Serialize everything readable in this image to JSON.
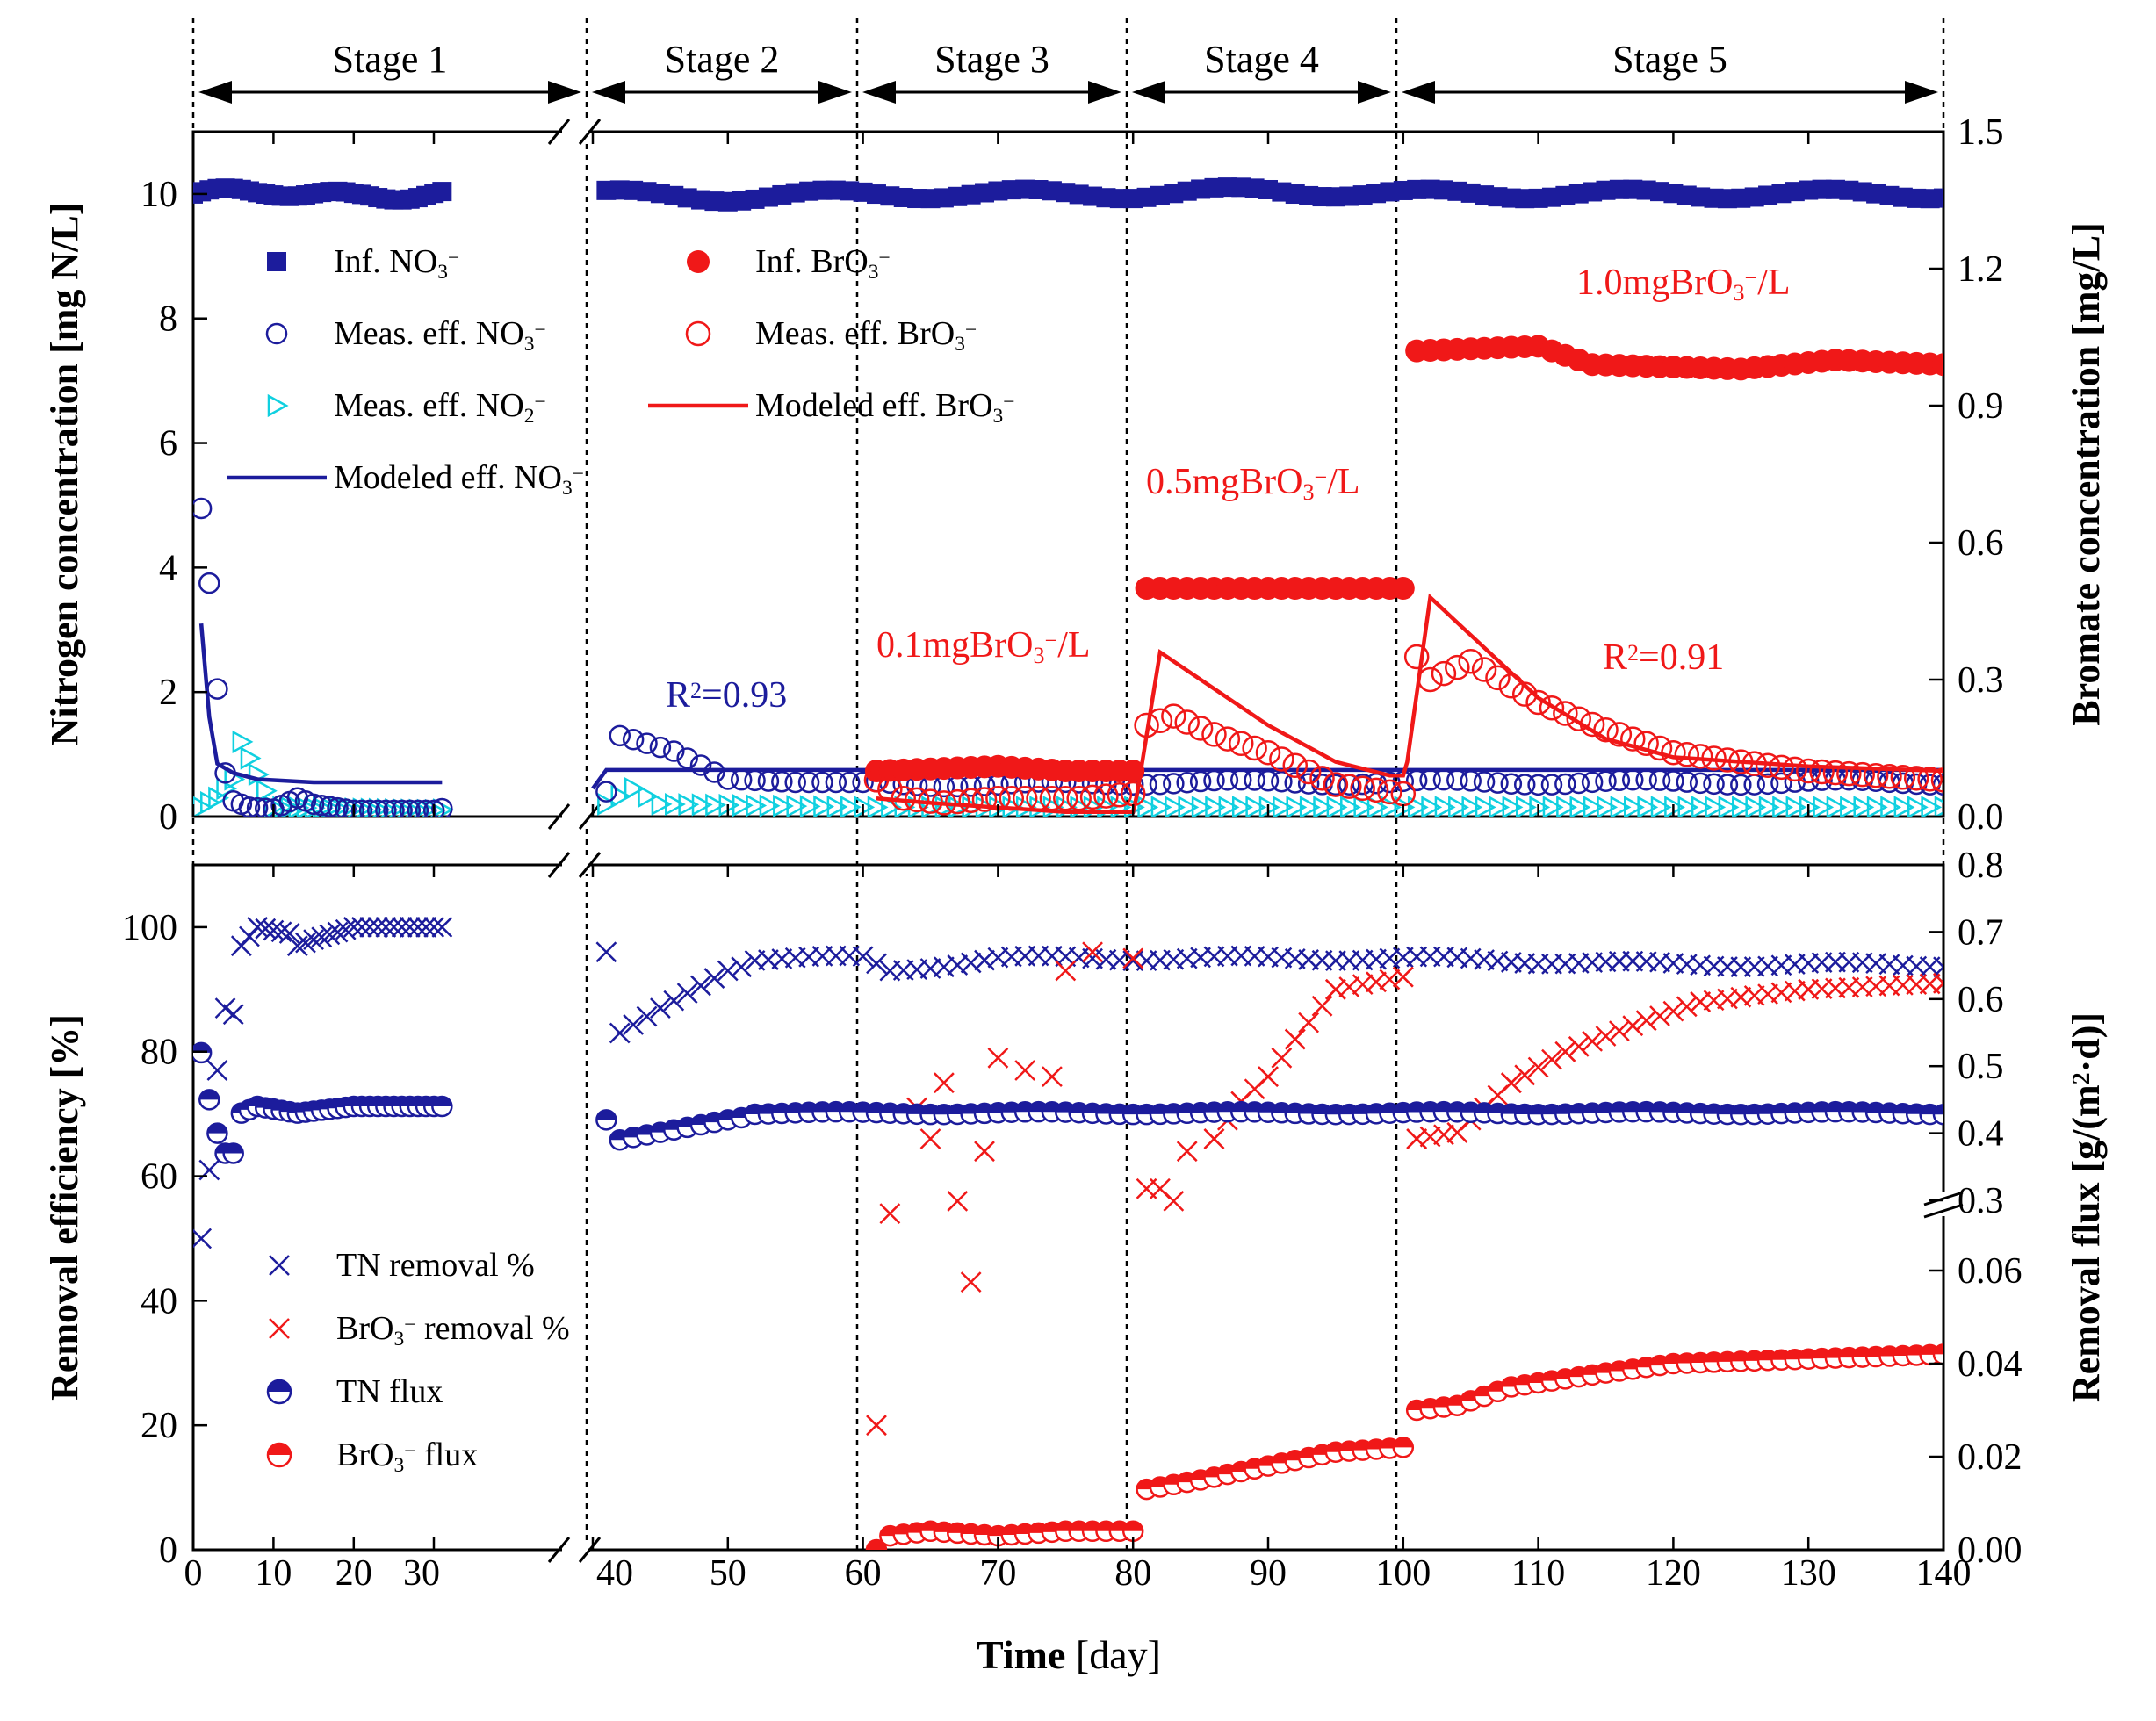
{
  "chart_data": {
    "type": "scatter",
    "x_axis": {
      "title": "Time",
      "unit": "[day]",
      "tick_labels": [
        "0",
        "10",
        "20",
        "30",
        "40",
        "50",
        "60",
        "70",
        "80",
        "90",
        "100",
        "110",
        "120",
        "130",
        "140"
      ],
      "axis_break": "between day 30 and day 40"
    },
    "stages": [
      {
        "label": "Stage 1",
        "start": 0,
        "end": 31
      },
      {
        "label": "Stage 2",
        "start": 39,
        "end": 60
      },
      {
        "label": "Stage 3",
        "start": 60,
        "end": 80
      },
      {
        "label": "Stage 4",
        "start": 80,
        "end": 100
      },
      {
        "label": "Stage 5",
        "start": 100,
        "end": 140
      }
    ],
    "top_panel": {
      "y_left": {
        "title": "Nitrogen concentration [mg N/L]",
        "ylim": [
          0,
          11
        ],
        "ticks": [
          "0",
          "2",
          "4",
          "6",
          "8",
          "10"
        ]
      },
      "y_right": {
        "title": "Bromate concentration [mg/L]",
        "ylim": [
          0,
          1.5
        ],
        "ticks": [
          "0.0",
          "0.3",
          "0.6",
          "0.9",
          "1.2",
          "1.5"
        ]
      },
      "legend_left": [
        "Inf. NO3⁻",
        "Meas. eff. NO3⁻",
        "Meas. eff. NO2⁻",
        "Modeled eff. NO3⁻"
      ],
      "legend_right": [
        "Inf. BrO3⁻",
        "Meas. eff. BrO3⁻",
        "Modeled eff. BrO3⁻"
      ],
      "annotations": {
        "r2_nitrate": "R²=0.93",
        "r2_bromate": "R²=0.91",
        "dose_stage3": "0.1mgBrO3⁻/L",
        "dose_stage4": "0.5mgBrO3⁻/L",
        "dose_stage5": "1.0mgBrO3⁻/L"
      },
      "series": [
        {
          "name": "Inf. NO3⁻",
          "axis": "left",
          "points": [
            [
              0,
              10
            ],
            [
              10,
              10.05
            ],
            [
              20,
              9.95
            ],
            [
              30,
              10
            ],
            [
              40,
              10
            ],
            [
              50,
              9.95
            ],
            [
              60,
              10
            ],
            [
              70,
              10
            ],
            [
              80,
              10
            ],
            [
              90,
              10.05
            ],
            [
              100,
              10
            ],
            [
              110,
              10
            ],
            [
              120,
              10
            ],
            [
              130,
              10
            ],
            [
              140,
              10
            ]
          ]
        },
        {
          "name": "Meas. eff. NO3⁻",
          "axis": "left",
          "points": [
            [
              1,
              4.95
            ],
            [
              2,
              3.75
            ],
            [
              3,
              2.05
            ],
            [
              4,
              0.7
            ],
            [
              5,
              0.25
            ],
            [
              7,
              0.15
            ],
            [
              10,
              0.12
            ],
            [
              13,
              0.3
            ],
            [
              15,
              0.2
            ],
            [
              20,
              0.1
            ],
            [
              30,
              0.1
            ],
            [
              41,
              0.4
            ],
            [
              42,
              1.3
            ],
            [
              46,
              1.05
            ],
            [
              50,
              0.6
            ],
            [
              55,
              0.55
            ],
            [
              60,
              0.55
            ],
            [
              70,
              0.5
            ],
            [
              80,
              0.55
            ],
            [
              90,
              0.55
            ],
            [
              100,
              0.55
            ],
            [
              120,
              0.55
            ],
            [
              140,
              0.55
            ]
          ]
        },
        {
          "name": "Meas. eff. NO2⁻",
          "axis": "left",
          "points": [
            [
              1,
              0.15
            ],
            [
              3,
              0.3
            ],
            [
              5,
              0.6
            ],
            [
              6,
              1.2
            ],
            [
              10,
              0.15
            ],
            [
              30,
              0.1
            ],
            [
              41,
              0.2
            ],
            [
              43,
              0.45
            ],
            [
              45,
              0.2
            ],
            [
              60,
              0.15
            ],
            [
              140,
              0.15
            ]
          ]
        },
        {
          "name": "Modeled eff. NO3⁻",
          "axis": "left",
          "points": [
            [
              1,
              3.1
            ],
            [
              2,
              1.6
            ],
            [
              3,
              0.85
            ],
            [
              5,
              0.7
            ],
            [
              8,
              0.6
            ],
            [
              15,
              0.55
            ],
            [
              31,
              0.55
            ],
            [
              40,
              0.45
            ],
            [
              41,
              0.75
            ],
            [
              60,
              0.75
            ],
            [
              140,
              0.75
            ]
          ]
        },
        {
          "name": "Inf. BrO3⁻",
          "axis": "right",
          "points": [
            [
              61,
              0.1
            ],
            [
              70,
              0.11
            ],
            [
              75,
              0.1
            ],
            [
              80,
              0.1
            ],
            [
              81,
              0.5
            ],
            [
              90,
              0.5
            ],
            [
              100,
              0.5
            ],
            [
              101,
              1.02
            ],
            [
              110,
              1.03
            ],
            [
              114,
              0.99
            ],
            [
              125,
              0.98
            ],
            [
              132,
              1.0
            ],
            [
              140,
              0.99
            ]
          ]
        },
        {
          "name": "Meas. eff. BrO3⁻",
          "axis": "right",
          "points": [
            [
              61,
              0.08
            ],
            [
              63,
              0.04
            ],
            [
              66,
              0.03
            ],
            [
              70,
              0.04
            ],
            [
              76,
              0.04
            ],
            [
              80,
              0.05
            ],
            [
              81,
              0.2
            ],
            [
              83,
              0.22
            ],
            [
              86,
              0.18
            ],
            [
              90,
              0.14
            ],
            [
              95,
              0.07
            ],
            [
              100,
              0.05
            ],
            [
              101,
              0.35
            ],
            [
              102,
              0.3
            ],
            [
              105,
              0.34
            ],
            [
              110,
              0.25
            ],
            [
              115,
              0.19
            ],
            [
              120,
              0.14
            ],
            [
              125,
              0.12
            ],
            [
              130,
              0.1
            ],
            [
              135,
              0.09
            ],
            [
              140,
              0.08
            ]
          ]
        },
        {
          "name": "Modeled eff. BrO3⁻",
          "axis": "right",
          "points": [
            [
              61,
              0.04
            ],
            [
              65,
              0.03
            ],
            [
              70,
              0.02
            ],
            [
              75,
              0.01
            ],
            [
              80,
              0.01
            ],
            [
              80.3,
              0.05
            ],
            [
              82,
              0.36
            ],
            [
              86,
              0.28
            ],
            [
              90,
              0.2
            ],
            [
              95,
              0.12
            ],
            [
              99,
              0.09
            ],
            [
              100,
              0.09
            ],
            [
              100.3,
              0.12
            ],
            [
              102,
              0.48
            ],
            [
              106,
              0.37
            ],
            [
              110,
              0.26
            ],
            [
              115,
              0.17
            ],
            [
              120,
              0.13
            ],
            [
              130,
              0.11
            ],
            [
              140,
              0.1
            ]
          ]
        }
      ]
    },
    "bottom_panel": {
      "y_left": {
        "title": "Removal efficiency [%]",
        "ylim": [
          0,
          110
        ],
        "ticks": [
          "0",
          "20",
          "40",
          "60",
          "80",
          "100"
        ]
      },
      "y_right": {
        "title": "Removal flux [g/(m²·d)]",
        "ticks": [
          "0.00",
          "0.02",
          "0.04",
          "0.06",
          "0.3",
          "0.4",
          "0.5",
          "0.6",
          "0.7",
          "0.8"
        ],
        "axis_break": "between 0.06 and 0.3"
      },
      "legend": [
        "TN removal %",
        "BrO3⁻ removal %",
        "TN flux",
        "BrO3⁻ flux"
      ],
      "series": [
        {
          "name": "TN removal %",
          "axis": "left",
          "points": [
            [
              1,
              50
            ],
            [
              2,
              61
            ],
            [
              3,
              77
            ],
            [
              4,
              87
            ],
            [
              5,
              86
            ],
            [
              6,
              97
            ],
            [
              8,
              100
            ],
            [
              12,
              99
            ],
            [
              13,
              97
            ],
            [
              15,
              98
            ],
            [
              20,
              100
            ],
            [
              30,
              100
            ],
            [
              40,
              100
            ],
            [
              41,
              96
            ],
            [
              42,
              83
            ],
            [
              45,
              87
            ],
            [
              50,
              93
            ],
            [
              52,
              95
            ],
            [
              60,
              95
            ],
            [
              62,
              93
            ],
            [
              70,
              95
            ],
            [
              80,
              95
            ],
            [
              90,
              95
            ],
            [
              100,
              95
            ],
            [
              120,
              94
            ],
            [
              140,
              94
            ]
          ]
        },
        {
          "name": "BrO3⁻ removal %",
          "axis": "left",
          "points": [
            [
              61,
              20
            ],
            [
              62,
              54
            ],
            [
              64,
              71
            ],
            [
              65,
              66
            ],
            [
              66,
              75
            ],
            [
              67,
              56
            ],
            [
              68,
              43
            ],
            [
              69,
              64
            ],
            [
              70,
              79
            ],
            [
              72,
              77
            ],
            [
              74,
              76
            ],
            [
              75,
              93
            ],
            [
              77,
              96
            ],
            [
              80,
              95
            ],
            [
              81,
              58
            ],
            [
              82,
              58
            ],
            [
              83,
              56
            ],
            [
              84,
              64
            ],
            [
              86,
              66
            ],
            [
              88,
              72
            ],
            [
              90,
              76
            ],
            [
              92,
              82
            ],
            [
              95,
              90
            ],
            [
              100,
              92
            ],
            [
              101,
              66
            ],
            [
              104,
              67
            ],
            [
              108,
              75
            ],
            [
              112,
              80
            ],
            [
              118,
              85
            ],
            [
              122,
              88
            ],
            [
              130,
              90
            ],
            [
              140,
              91
            ]
          ]
        },
        {
          "name": "TN flux",
          "axis": "right",
          "points": [
            [
              1,
              0.52
            ],
            [
              2,
              0.45
            ],
            [
              3,
              0.4
            ],
            [
              4,
              0.37
            ],
            [
              5,
              0.37
            ],
            [
              6,
              0.43
            ],
            [
              8,
              0.44
            ],
            [
              13,
              0.43
            ],
            [
              20,
              0.44
            ],
            [
              30,
              0.44
            ],
            [
              40,
              0.44
            ],
            [
              41,
              0.42
            ],
            [
              42,
              0.39
            ],
            [
              50,
              0.42
            ],
            [
              52,
              0.43
            ],
            [
              60,
              0.43
            ],
            [
              70,
              0.43
            ],
            [
              80,
              0.43
            ],
            [
              100,
              0.43
            ],
            [
              140,
              0.43
            ]
          ]
        },
        {
          "name": "BrO3⁻ flux",
          "axis": "right",
          "points": [
            [
              61,
              0.0
            ],
            [
              62,
              0.003
            ],
            [
              65,
              0.004
            ],
            [
              70,
              0.003
            ],
            [
              75,
              0.004
            ],
            [
              80,
              0.004
            ],
            [
              81,
              0.013
            ],
            [
              85,
              0.015
            ],
            [
              90,
              0.018
            ],
            [
              95,
              0.021
            ],
            [
              100,
              0.022
            ],
            [
              101,
              0.03
            ],
            [
              104,
              0.031
            ],
            [
              108,
              0.035
            ],
            [
              115,
              0.038
            ],
            [
              120,
              0.04
            ],
            [
              130,
              0.041
            ],
            [
              140,
              0.042
            ]
          ]
        }
      ]
    }
  }
}
